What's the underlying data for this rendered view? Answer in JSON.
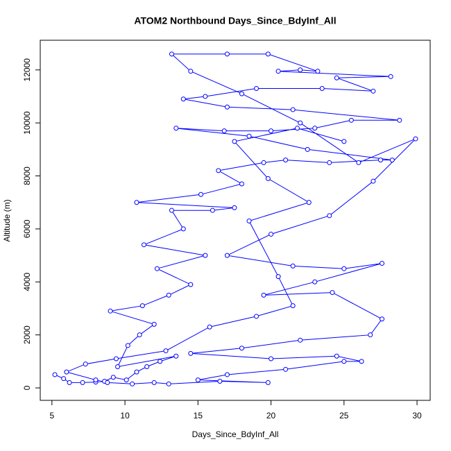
{
  "chart_data": {
    "type": "line",
    "title": "ATOM2 Northbound Days_Since_BdyInf_All",
    "x_label": "Days_Since_BdyInf_All",
    "y_label": "Altitude (m)",
    "xlim": [
      4.2,
      30.9
    ],
    "ylim": [
      -470,
      13120
    ],
    "xticks": [
      5,
      10,
      15,
      20,
      25,
      30
    ],
    "yticks": [
      0,
      2000,
      4000,
      6000,
      8000,
      10000,
      12000
    ],
    "series": [
      {
        "color": "#0000ff",
        "x": [
          5.2,
          5.8,
          6.2,
          7.1,
          8.0,
          8.6,
          9.2,
          10.1,
          10.8,
          11.5,
          12.4,
          13.5,
          9.5,
          10.2,
          11.0,
          12.0,
          9.0,
          11.2,
          13.0,
          14.5,
          12.2,
          15.5,
          11.3,
          14.0,
          13.2,
          16.0,
          17.5,
          10.8,
          15.2,
          18.0,
          16.4,
          19.5,
          21.0,
          24.0,
          27.5,
          28.3,
          22.5,
          18.5,
          13.5,
          16.8,
          20.0,
          23.0,
          25.5,
          28.8,
          21.5,
          17.0,
          14.0,
          15.5,
          19.0,
          23.5,
          27.0,
          24.5,
          28.2,
          20.5,
          22.0,
          23.2,
          19.8,
          17.0,
          13.2,
          14.5,
          18.0,
          22.0,
          26.0,
          29.9,
          27.0,
          24.0,
          20.0,
          17.0,
          21.5,
          25.0,
          27.6,
          23.0,
          19.5,
          24.2,
          27.6,
          26.8,
          22.0,
          18.0,
          14.5,
          20.0,
          24.5,
          26.2,
          25.0,
          21.0,
          17.0,
          15.0,
          19.8,
          16.5,
          13.0,
          12.0,
          10.5,
          8.8,
          8.0,
          6.0,
          7.3,
          9.4,
          12.8,
          15.8,
          19.0,
          21.5,
          20.5,
          18.5,
          22.6,
          19.8,
          17.5,
          21.8,
          25.0
        ],
        "values": [
          500,
          350,
          200,
          200,
          220,
          250,
          400,
          300,
          600,
          800,
          1000,
          1200,
          800,
          1600,
          2000,
          2400,
          2900,
          3100,
          3500,
          3900,
          4500,
          5000,
          5400,
          6000,
          6700,
          6700,
          6800,
          7000,
          7300,
          7700,
          8200,
          8500,
          8600,
          8500,
          8600,
          8600,
          9000,
          9500,
          9800,
          9700,
          9700,
          9800,
          10100,
          10100,
          10500,
          10600,
          10900,
          11000,
          11300,
          11300,
          11200,
          11700,
          11750,
          11950,
          12000,
          11950,
          12600,
          12600,
          12600,
          11950,
          11100,
          10000,
          8500,
          9400,
          7800,
          6500,
          5800,
          5000,
          4600,
          4500,
          4700,
          4000,
          3500,
          3600,
          2600,
          2000,
          1800,
          1500,
          1300,
          1100,
          1200,
          1000,
          1000,
          700,
          500,
          300,
          200,
          250,
          150,
          200,
          150,
          200,
          300,
          600,
          900,
          1100,
          1400,
          2300,
          2700,
          3100,
          4200,
          6300,
          7000,
          7900,
          9300,
          9800,
          9300
        ]
      }
    ]
  }
}
